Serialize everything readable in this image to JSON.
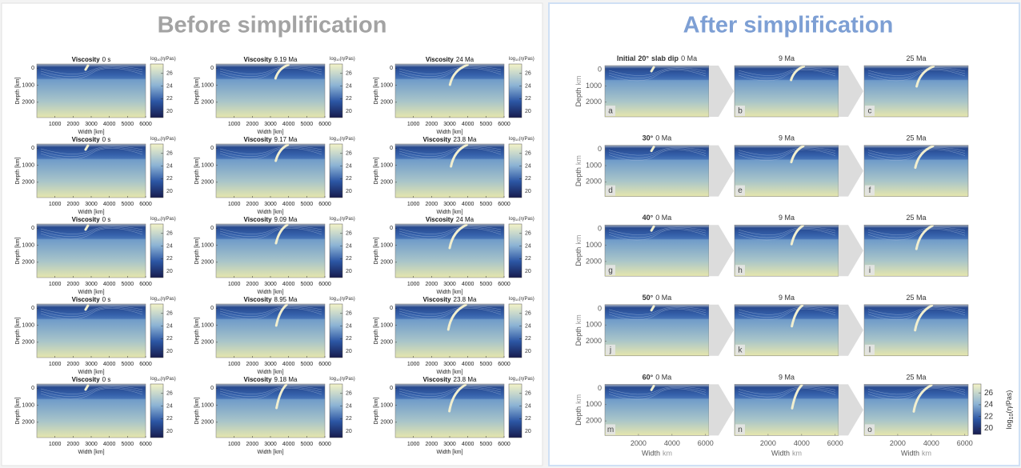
{
  "before": {
    "title": "Before simplification",
    "bold": "Viscosity",
    "times": [
      [
        "0 s",
        "9.19 Ma",
        "24 Ma"
      ],
      [
        "0 s",
        "9.17 Ma",
        "23.8 Ma"
      ],
      [
        "0 s",
        "9.09 Ma",
        "24 Ma"
      ],
      [
        "0 s",
        "8.95 Ma",
        "23.8 Ma"
      ],
      [
        "0 s",
        "9.18 Ma",
        "23.8 Ma"
      ]
    ],
    "depth_label": "Depth [km]",
    "width_label": "Width [km]",
    "xticks": [
      1000,
      2000,
      3000,
      4000,
      5000,
      6000
    ],
    "yticks": [
      0,
      1000,
      2000
    ],
    "xlim": [
      0,
      6000
    ],
    "ylim": [
      -250,
      2900
    ],
    "cbar_label": {
      "base": "log",
      "sub": "10",
      "rest": "(η/Pas)"
    },
    "cbar_ticks": [
      26,
      24,
      22,
      20
    ],
    "clim": [
      19,
      27.5
    ]
  },
  "after": {
    "title": "After simplification",
    "first_prefix": "Initial",
    "first_suffix": "slab dip",
    "rows": [
      {
        "dip": "20°",
        "time": "0 Ma"
      },
      {
        "dip": "30°",
        "time": "0 Ma"
      },
      {
        "dip": "40°",
        "time": "0 Ma"
      },
      {
        "dip": "50°",
        "time": "0 Ma"
      },
      {
        "dip": "60°",
        "time": "0 Ma"
      }
    ],
    "times": [
      "9 Ma",
      "25 Ma"
    ],
    "letters": [
      "a",
      "b",
      "c",
      "d",
      "e",
      "f",
      "g",
      "h",
      "i",
      "j",
      "k",
      "l",
      "m",
      "n",
      "o"
    ],
    "depth_label": [
      "Depth",
      "km"
    ],
    "width_label": [
      "Width",
      "km"
    ],
    "xticks": [
      2000,
      4000,
      6000
    ],
    "yticks": [
      0,
      1000,
      2000
    ],
    "xlim": [
      0,
      6200
    ],
    "ylim": [
      -250,
      2900
    ],
    "cbar_label": {
      "base": "log",
      "sub": "10",
      "rest": "(η/Pas)"
    },
    "cbar_ticks": [
      26,
      24,
      22,
      20
    ],
    "clim": [
      19,
      27.5
    ]
  }
}
